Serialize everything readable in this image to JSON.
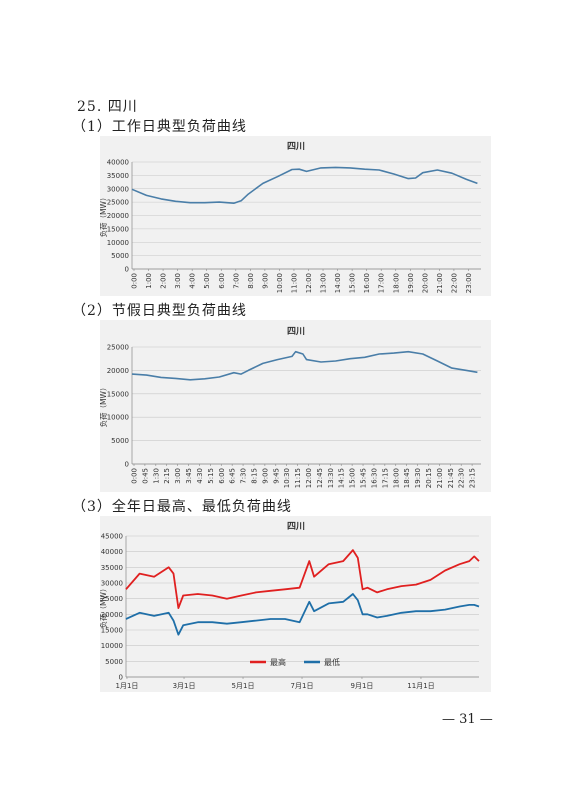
{
  "section": {
    "number": "25.",
    "name": "四川"
  },
  "subheadings": [
    "（1）工作日典型负荷曲线",
    "（2）节假日典型负荷曲线",
    "（3）全年日最高、最低负荷曲线"
  ],
  "page_number": "— 31 —",
  "colors": {
    "line": "#4a7ea8",
    "max": "#e02020",
    "min": "#1f6fa8",
    "panel": "#f1f1f1"
  },
  "chart_data": [
    {
      "type": "line",
      "title": "四川",
      "ylabel": "负荷（MW）",
      "ylim": [
        0,
        40000
      ],
      "yticks": [
        "0",
        "5000",
        "10000",
        "15000",
        "20000",
        "25000",
        "30000",
        "35000",
        "40000"
      ],
      "xticks": [
        "0:00",
        "1:00",
        "2:00",
        "3:00",
        "4:00",
        "5:00",
        "6:00",
        "7:00",
        "8:00",
        "9:00",
        "10:00",
        "11:00",
        "12:00",
        "13:00",
        "14:00",
        "15:00",
        "16:00",
        "17:00",
        "18:00",
        "19:00",
        "20:00",
        "21:00",
        "22:00",
        "23:00"
      ],
      "grid": true,
      "series": [
        {
          "x": [
            0,
            1,
            2,
            3,
            4,
            5,
            6,
            7,
            7.5,
            8,
            9,
            10,
            11,
            11.5,
            12,
            13,
            14,
            15,
            16,
            17,
            18,
            19,
            19.5,
            20,
            21,
            22,
            23,
            23.75
          ],
          "values": [
            29800,
            27500,
            26200,
            25300,
            24800,
            24800,
            25000,
            24600,
            25500,
            28000,
            32000,
            34500,
            37200,
            37300,
            36500,
            37800,
            38000,
            37800,
            37300,
            37000,
            35500,
            33800,
            34000,
            36000,
            37000,
            35800,
            33500,
            32000
          ]
        }
      ]
    },
    {
      "type": "line",
      "title": "四川",
      "ylabel": "负荷（MW）",
      "ylim": [
        0,
        25000
      ],
      "yticks": [
        "0",
        "5000",
        "10000",
        "15000",
        "20000",
        "25000"
      ],
      "xticks": [
        "0:00",
        "0:45",
        "1:30",
        "2:15",
        "3:00",
        "3:45",
        "4:30",
        "5:15",
        "6:00",
        "6:45",
        "7:30",
        "8:15",
        "9:00",
        "9:45",
        "10:30",
        "11:15",
        "12:00",
        "12:45",
        "13:30",
        "14:15",
        "15:00",
        "15:45",
        "16:30",
        "17:15",
        "18:00",
        "18:45",
        "19:30",
        "20:15",
        "21:00",
        "21:45",
        "22:30",
        "23:15"
      ],
      "grid": true,
      "series": [
        {
          "x": [
            0,
            1,
            2,
            3,
            4,
            5,
            6,
            7,
            7.5,
            8,
            9,
            10,
            11,
            11.25,
            11.75,
            12,
            13,
            14,
            15,
            16,
            17,
            18,
            19,
            20,
            21,
            22,
            23,
            23.75
          ],
          "values": [
            19200,
            19000,
            18500,
            18300,
            18000,
            18200,
            18600,
            19500,
            19200,
            20000,
            21500,
            22300,
            23000,
            24000,
            23500,
            22300,
            21800,
            22000,
            22500,
            22800,
            23500,
            23700,
            24000,
            23500,
            22000,
            20500,
            20000,
            19600
          ]
        }
      ]
    },
    {
      "type": "line",
      "title": "四川",
      "ylabel": "负荷（MW）",
      "ylim": [
        0,
        45000
      ],
      "yticks": [
        "0",
        "5000",
        "10000",
        "15000",
        "20000",
        "25000",
        "30000",
        "35000",
        "40000",
        "45000"
      ],
      "xticks": [
        "1月1日",
        "3月1日",
        "5月1日",
        "7月1日",
        "9月1日",
        "11月1日"
      ],
      "grid": true,
      "legend": "bottom",
      "series": [
        {
          "name": "最高",
          "x": [
            1,
            15,
            30,
            45,
            50,
            55,
            60,
            75,
            90,
            105,
            120,
            135,
            150,
            165,
            180,
            190,
            195,
            210,
            225,
            235,
            240,
            245,
            250,
            260,
            270,
            285,
            300,
            315,
            330,
            345,
            355,
            360,
            365
          ],
          "values": [
            28000,
            33000,
            32000,
            35000,
            33000,
            22000,
            26000,
            26500,
            26000,
            25000,
            26000,
            27000,
            27500,
            28000,
            28500,
            37000,
            32000,
            36000,
            37000,
            40500,
            38000,
            28000,
            28500,
            27000,
            28000,
            29000,
            29500,
            31000,
            34000,
            36000,
            37000,
            38500,
            37000
          ]
        },
        {
          "name": "最低",
          "x": [
            1,
            15,
            30,
            45,
            50,
            55,
            60,
            75,
            90,
            105,
            120,
            135,
            150,
            165,
            180,
            190,
            195,
            210,
            225,
            235,
            240,
            245,
            250,
            260,
            270,
            285,
            300,
            315,
            330,
            345,
            355,
            360,
            365
          ],
          "values": [
            18500,
            20500,
            19500,
            20500,
            18000,
            13500,
            16500,
            17500,
            17500,
            17000,
            17500,
            18000,
            18500,
            18500,
            17500,
            24000,
            21000,
            23500,
            24000,
            26500,
            24500,
            20000,
            20000,
            19000,
            19500,
            20500,
            21000,
            21000,
            21500,
            22500,
            23000,
            23000,
            22500
          ]
        }
      ]
    }
  ]
}
